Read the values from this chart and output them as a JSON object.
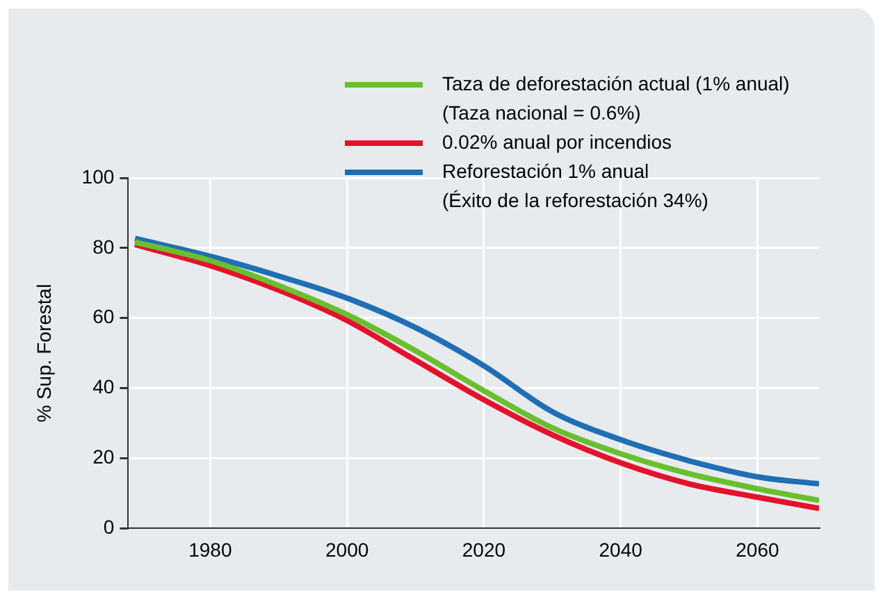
{
  "chart_data": {
    "type": "line",
    "ylabel": "% Sup. Forestal",
    "xlim": [
      1968,
      2069
    ],
    "xticks": [
      1980,
      2000,
      2020,
      2040,
      2060
    ],
    "ylim": [
      0,
      100
    ],
    "yticks": [
      0,
      20,
      40,
      60,
      80,
      100
    ],
    "grid": true,
    "legend": "top right",
    "marker": "none",
    "line_style": "solid",
    "x": [
      1969,
      1980,
      1990,
      2000,
      2010,
      2020,
      2030,
      2040,
      2050,
      2060,
      2069
    ],
    "series": [
      {
        "name": "Taza de deforestación actual (1% anual)\n(Taza nacional = 0.6%)",
        "color": "#6abf2e",
        "values": [
          81.7,
          76.4,
          69.3,
          61,
          50.7,
          39.3,
          28.7,
          21.3,
          15.6,
          11.3,
          8
        ]
      },
      {
        "name": "0.02% anual por incendios",
        "color": "#e3122d",
        "values": [
          81,
          75,
          68,
          59.3,
          48,
          36.7,
          26.7,
          18.7,
          12.7,
          8.9,
          5.7
        ]
      },
      {
        "name": "Reforestación 1% anual\n(Éxito de la reforestación 34%)",
        "color": "#1f6fb5",
        "values": [
          82.7,
          77.6,
          72,
          65.7,
          57.3,
          46.4,
          33.3,
          25.3,
          19.3,
          14.7,
          12.7
        ]
      }
    ]
  }
}
